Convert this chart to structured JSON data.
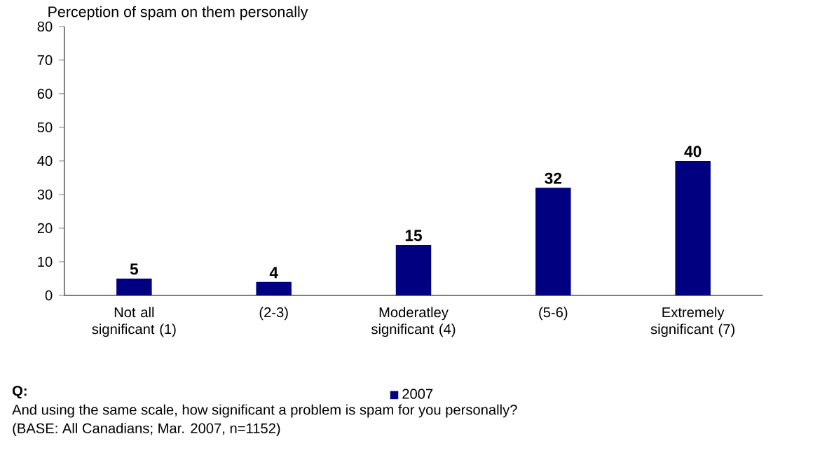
{
  "chart_data": {
    "type": "bar",
    "title": "Perception of spam on them personally",
    "categories": [
      "Not all significant (1)",
      "(2-3)",
      "Moderatley significant (4)",
      "(5-6)",
      "Extremely significant (7)"
    ],
    "series": [
      {
        "name": "2007",
        "color": "#000080",
        "values": [
          5,
          4,
          15,
          32,
          40
        ]
      }
    ],
    "ylim": [
      0,
      80
    ],
    "yticks": [
      0,
      10,
      20,
      30,
      40,
      50,
      60,
      70,
      80
    ],
    "data_labels": true,
    "grid": false,
    "legend": "bottom",
    "annotations": [
      "Q:",
      "And using the same scale, how significant a problem is spam for you personally?",
      "(BASE:  All Canadians; Mar. 2007, n=1152)"
    ]
  }
}
